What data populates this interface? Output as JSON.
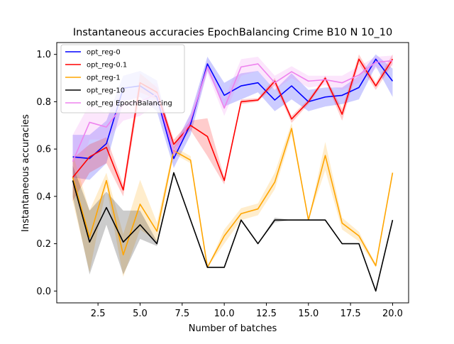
{
  "chart_data": {
    "type": "line",
    "title": "Instantaneous accuracies EpochBalancing Crime B10 N 10_10",
    "xlabel": "Number of batches",
    "ylabel": "Instantaneous accuracies",
    "xlim": [
      0.05,
      20.95
    ],
    "ylim": [
      -0.05,
      1.05
    ],
    "xticks": [
      2.5,
      5.0,
      7.5,
      10.0,
      12.5,
      15.0,
      17.5,
      20.0
    ],
    "xtick_labels": [
      "2.5",
      "5.0",
      "7.5",
      "10.0",
      "12.5",
      "15.0",
      "17.5",
      "20.0"
    ],
    "yticks": [
      0.0,
      0.2,
      0.4,
      0.6,
      0.8,
      1.0
    ],
    "ytick_labels": [
      "0.0",
      "0.2",
      "0.4",
      "0.6",
      "0.8",
      "1.0"
    ],
    "grid": false,
    "legend_position": "top-left",
    "x": [
      1,
      2,
      3,
      4,
      5,
      6,
      7,
      8,
      9,
      10,
      11,
      12,
      13,
      14,
      15,
      16,
      17,
      18,
      19,
      20
    ],
    "series": [
      {
        "name": "opt_reg-0",
        "color": "#0000ff",
        "values": [
          0.567,
          0.56,
          0.623,
          0.857,
          0.867,
          0.82,
          0.56,
          0.705,
          0.96,
          0.827,
          0.867,
          0.88,
          0.807,
          0.867,
          0.8,
          0.82,
          0.827,
          0.86,
          0.98,
          0.887
        ],
        "lower": [
          0.48,
          0.47,
          0.54,
          0.8,
          0.82,
          0.76,
          0.52,
          0.66,
          0.93,
          0.78,
          0.81,
          0.84,
          0.76,
          0.81,
          0.76,
          0.78,
          0.79,
          0.81,
          0.95,
          0.82
        ],
        "upper": [
          0.66,
          0.66,
          0.72,
          0.91,
          0.93,
          0.89,
          0.61,
          0.75,
          0.99,
          0.88,
          0.92,
          0.93,
          0.85,
          0.92,
          0.85,
          0.86,
          0.86,
          0.91,
          1.0,
          0.94
        ]
      },
      {
        "name": "opt_reg-0.1",
        "color": "#ff0000",
        "values": [
          0.48,
          0.567,
          0.607,
          0.427,
          0.88,
          0.84,
          0.62,
          0.7,
          0.653,
          0.467,
          0.8,
          0.807,
          0.887,
          0.727,
          0.8,
          0.9,
          0.747,
          0.98,
          0.867,
          0.98
        ],
        "lower": [
          0.38,
          0.5,
          0.54,
          0.4,
          0.84,
          0.81,
          0.6,
          0.68,
          0.57,
          0.45,
          0.79,
          0.8,
          0.87,
          0.71,
          0.79,
          0.89,
          0.72,
          0.96,
          0.85,
          0.96
        ],
        "upper": [
          0.56,
          0.62,
          0.65,
          0.45,
          0.92,
          0.86,
          0.64,
          0.72,
          0.73,
          0.48,
          0.81,
          0.815,
          0.9,
          0.74,
          0.81,
          0.91,
          0.77,
          1.0,
          0.88,
          1.0
        ]
      },
      {
        "name": "opt_reg-1",
        "color": "#ffa500",
        "values": [
          0.48,
          0.227,
          0.467,
          0.153,
          0.367,
          0.253,
          0.593,
          0.553,
          0.1,
          0.233,
          0.327,
          0.347,
          0.46,
          0.687,
          0.3,
          0.573,
          0.287,
          0.233,
          0.107,
          0.5
        ],
        "lower": [
          0.38,
          0.08,
          0.44,
          0.06,
          0.26,
          0.21,
          0.58,
          0.54,
          0.1,
          0.2,
          0.3,
          0.32,
          0.43,
          0.66,
          0.3,
          0.51,
          0.26,
          0.21,
          0.1,
          0.5
        ],
        "upper": [
          0.58,
          0.34,
          0.5,
          0.24,
          0.47,
          0.29,
          0.61,
          0.57,
          0.1,
          0.26,
          0.35,
          0.37,
          0.5,
          0.71,
          0.3,
          0.63,
          0.31,
          0.25,
          0.115,
          0.5
        ]
      },
      {
        "name": "opt_reg-10",
        "color": "#000000",
        "values": [
          0.467,
          0.207,
          0.353,
          0.207,
          0.28,
          0.2,
          0.5,
          0.3,
          0.1,
          0.1,
          0.3,
          0.2,
          0.3,
          0.3,
          0.3,
          0.3,
          0.2,
          0.2,
          0.0,
          0.3
        ],
        "lower": [
          0.4,
          0.07,
          0.28,
          0.07,
          0.22,
          0.19,
          0.5,
          0.3,
          0.1,
          0.1,
          0.3,
          0.2,
          0.29,
          0.3,
          0.3,
          0.3,
          0.2,
          0.2,
          0.0,
          0.3
        ],
        "upper": [
          0.53,
          0.34,
          0.42,
          0.34,
          0.34,
          0.21,
          0.5,
          0.3,
          0.1,
          0.1,
          0.3,
          0.2,
          0.31,
          0.3,
          0.3,
          0.3,
          0.2,
          0.2,
          0.0,
          0.3
        ]
      },
      {
        "name": "opt_reg EpochBalancing",
        "color": "#ee82ee",
        "values": [
          0.547,
          0.713,
          0.693,
          0.787,
          0.8,
          0.833,
          0.58,
          0.72,
          0.947,
          0.773,
          0.947,
          0.96,
          0.88,
          0.927,
          0.887,
          0.893,
          0.88,
          0.913,
          0.967,
          0.973
        ],
        "lower": [
          0.44,
          0.64,
          0.64,
          0.72,
          0.74,
          0.79,
          0.55,
          0.69,
          0.92,
          0.74,
          0.91,
          0.93,
          0.85,
          0.9,
          0.86,
          0.87,
          0.85,
          0.88,
          0.94,
          0.95
        ],
        "upper": [
          0.66,
          0.79,
          0.75,
          0.85,
          0.86,
          0.88,
          0.61,
          0.75,
          0.97,
          0.81,
          0.98,
          0.99,
          0.91,
          0.95,
          0.91,
          0.91,
          0.91,
          0.95,
          0.99,
          0.995
        ]
      }
    ]
  }
}
